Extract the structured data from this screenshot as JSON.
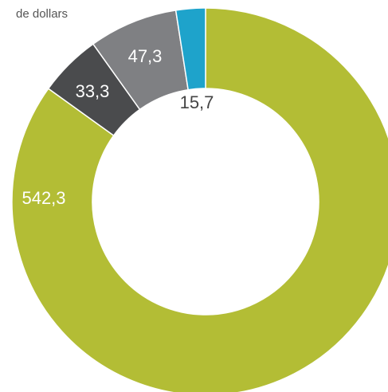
{
  "chart_data": {
    "type": "donut",
    "subtitle": "de dollars",
    "categories": [
      null,
      null,
      null,
      null
    ],
    "values": [
      542.3,
      33.3,
      47.3,
      15.7
    ],
    "value_labels": [
      "542,3",
      "33,3",
      "47,3",
      "15,7"
    ],
    "colors": [
      "#b3bd35",
      "#4a4b4d",
      "#7f8083",
      "#1ea3cb"
    ]
  }
}
